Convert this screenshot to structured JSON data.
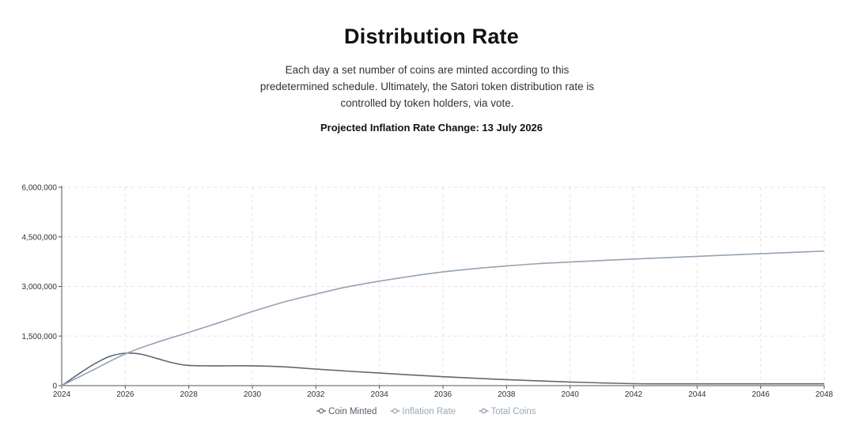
{
  "header": {
    "title": "Distribution Rate",
    "description": "Each day a set number of coins are minted according to this predetermined schedule. Ultimately, the Satori token distribution rate is controlled by token holders, via vote.",
    "projection": "Projected Inflation Rate Change: 13 July 2026"
  },
  "colors": {
    "coin_minted": "#5f6874",
    "inflation_rate": "#94a3b3",
    "total_coins": "#8c9aa8",
    "grid": "#e3e3e3",
    "axis": "#555555"
  },
  "chart_data": {
    "type": "line",
    "title": "",
    "xlabel": "",
    "ylabel": "",
    "xlim": [
      2024,
      2048
    ],
    "ylim": [
      0,
      6000000
    ],
    "x_ticks": [
      2024,
      2026,
      2028,
      2030,
      2032,
      2034,
      2036,
      2038,
      2040,
      2042,
      2044,
      2046,
      2048
    ],
    "x_tick_labels": [
      "2024",
      "2026",
      "2028",
      "2030",
      "2032",
      "2034",
      "2036",
      "2038",
      "2040",
      "2042",
      "2044",
      "2046",
      "2048"
    ],
    "y_ticks": [
      0,
      1500000,
      3000000,
      4500000,
      6000000
    ],
    "y_tick_labels": [
      "0",
      "1,500,000",
      "3,000,000",
      "4,500,000",
      "6,000,000"
    ],
    "grid": true,
    "legend_position": "bottom-center",
    "series": [
      {
        "name": "Coin Minted",
        "x": [
          2024,
          2024.5,
          2025,
          2025.5,
          2026,
          2026.5,
          2027,
          2027.5,
          2028,
          2029,
          2030,
          2031,
          2032,
          2034,
          2036,
          2038,
          2040,
          2042,
          2044,
          2046,
          2048
        ],
        "y": [
          0,
          330000,
          640000,
          880000,
          980000,
          950000,
          820000,
          690000,
          610000,
          600000,
          600000,
          570000,
          500000,
          380000,
          270000,
          180000,
          110000,
          60000,
          55000,
          55000,
          55000
        ]
      },
      {
        "name": "Inflation Rate",
        "x": [
          2024,
          2025,
          2026,
          2027,
          2028,
          2029,
          2030,
          2031,
          2032,
          2033,
          2034,
          2035,
          2036,
          2037,
          2038,
          2039,
          2040,
          2042,
          2044,
          2046,
          2048
        ],
        "y": [
          0,
          480000,
          960000,
          1310000,
          1610000,
          1920000,
          2240000,
          2530000,
          2770000,
          2990000,
          3160000,
          3310000,
          3440000,
          3540000,
          3620000,
          3690000,
          3740000,
          3830000,
          3910000,
          3990000,
          4070000
        ]
      },
      {
        "name": "Total Coins",
        "x": [],
        "y": []
      }
    ]
  }
}
